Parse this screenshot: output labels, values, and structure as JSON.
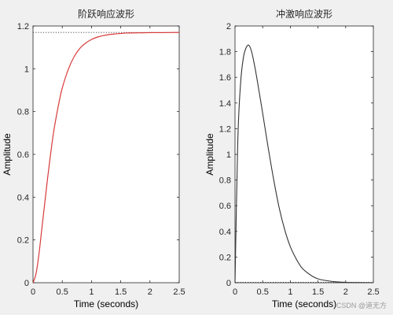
{
  "chart_data": [
    {
      "type": "line",
      "title": "阶跃响应波形",
      "xlabel": "Time (seconds)",
      "ylabel": "Amplitude",
      "xlim": [
        0,
        2.5
      ],
      "ylim": [
        0,
        1.2
      ],
      "xticks": [
        "0",
        "0.5",
        "1",
        "1.5",
        "2",
        "2.5"
      ],
      "yticks": [
        "0",
        "0.2",
        "0.4",
        "0.6",
        "0.8",
        "1",
        "1.2"
      ],
      "grid": false,
      "series": [
        {
          "color": "#d93a3a",
          "x": [
            0,
            0.05,
            0.1,
            0.15,
            0.2,
            0.25,
            0.3,
            0.35,
            0.4,
            0.45,
            0.5,
            0.6,
            0.7,
            0.8,
            0.9,
            1.0,
            1.1,
            1.2,
            1.3,
            1.4,
            1.5,
            1.6,
            1.8,
            2.0,
            2.2,
            2.5
          ],
          "y": [
            0,
            0.04,
            0.13,
            0.25,
            0.37,
            0.49,
            0.6,
            0.7,
            0.78,
            0.85,
            0.91,
            0.995,
            1.055,
            1.095,
            1.12,
            1.137,
            1.148,
            1.155,
            1.16,
            1.163,
            1.165,
            1.167,
            1.168,
            1.169,
            1.169,
            1.17
          ]
        }
      ],
      "reference_line": {
        "y": 1.17,
        "style": "dotted",
        "color": "#3a3a3a"
      }
    },
    {
      "type": "line",
      "title": "冲激响应波形",
      "xlabel": "Time (seconds)",
      "ylabel": "Amplitude",
      "xlim": [
        0,
        2.5
      ],
      "ylim": [
        0,
        2
      ],
      "xticks": [
        "0",
        "0.5",
        "1",
        "1.5",
        "2",
        "2.5"
      ],
      "yticks": [
        "0",
        "0.2",
        "0.4",
        "0.6",
        "0.8",
        "1",
        "1.2",
        "1.4",
        "1.6",
        "1.8",
        "2"
      ],
      "grid": false,
      "series": [
        {
          "color": "#333333",
          "x": [
            0,
            0.05,
            0.1,
            0.15,
            0.2,
            0.25,
            0.3,
            0.35,
            0.4,
            0.5,
            0.6,
            0.7,
            0.8,
            0.9,
            1.0,
            1.1,
            1.2,
            1.3,
            1.4,
            1.5,
            1.6,
            1.8,
            2.0,
            2.2,
            2.5
          ],
          "y": [
            0,
            1.1,
            1.55,
            1.75,
            1.83,
            1.85,
            1.8,
            1.7,
            1.58,
            1.32,
            1.05,
            0.8,
            0.58,
            0.41,
            0.28,
            0.19,
            0.12,
            0.08,
            0.05,
            0.03,
            0.02,
            0.008,
            0.003,
            0.001,
            0
          ]
        }
      ],
      "reference_line": {
        "y": 0,
        "style": "dotted",
        "color": "#3a3a3a"
      }
    }
  ],
  "watermark": "CSDN @道无方"
}
